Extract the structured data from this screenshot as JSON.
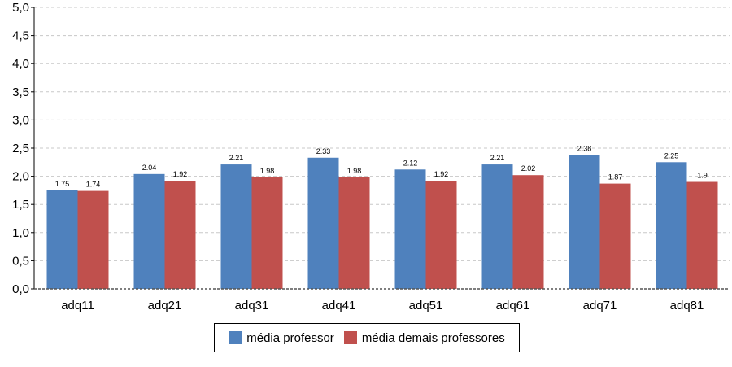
{
  "chart_data": {
    "type": "bar",
    "categories": [
      "adq11",
      "adq21",
      "adq31",
      "adq41",
      "adq51",
      "adq61",
      "adq71",
      "adq81"
    ],
    "series": [
      {
        "name": "média professor",
        "color": "#4f81bd",
        "values": [
          1.75,
          2.04,
          2.21,
          2.33,
          2.12,
          2.21,
          2.38,
          2.25
        ],
        "labels": [
          "1.75",
          "2.04",
          "2.21",
          "2.33",
          "2.12",
          "2.21",
          "2.38",
          "2.25"
        ]
      },
      {
        "name": "média demais professores",
        "color": "#c0504d",
        "values": [
          1.74,
          1.92,
          1.98,
          1.98,
          1.92,
          2.02,
          1.87,
          1.9
        ],
        "labels": [
          "1.74",
          "1.92",
          "1.98",
          "1.98",
          "1.92",
          "2.02",
          "1.87",
          "1.9"
        ]
      }
    ],
    "ylim": [
      0,
      5
    ],
    "yticks": [
      "0,0",
      "0,5",
      "1,0",
      "1,5",
      "2,0",
      "2,5",
      "3,0",
      "3,5",
      "4,0",
      "4,5",
      "5,0"
    ],
    "grid": true,
    "legend_position": "bottom"
  }
}
